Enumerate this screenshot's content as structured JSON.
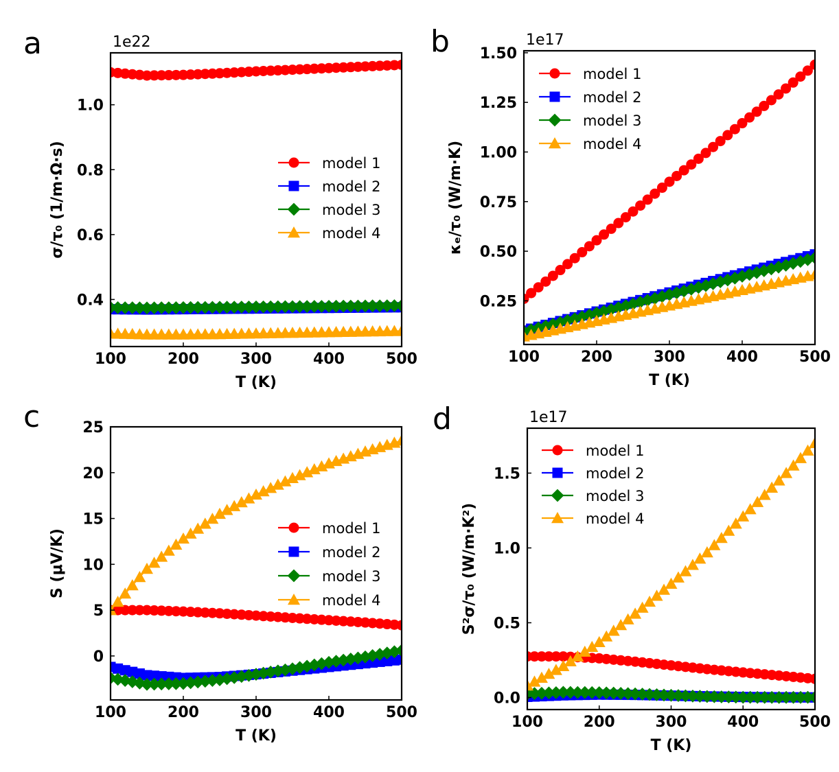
{
  "chart_data": [
    {
      "panel": "a",
      "type": "scatter",
      "offset_text": "1e22",
      "xlabel": "T (K)",
      "ylabel": "σ/τ₀ (1/m·Ω·s)",
      "xlim": [
        100,
        500
      ],
      "ylim": [
        0.255,
        1.16
      ],
      "xticks": [
        100,
        200,
        300,
        400,
        500
      ],
      "xtick_labels": [
        "100",
        "200",
        "300",
        "400",
        "500"
      ],
      "yticks": [
        0.4,
        0.6,
        0.8,
        1.0
      ],
      "ytick_labels": [
        "0.4",
        "0.6",
        "0.8",
        "1.0"
      ],
      "legend_position": "center-right",
      "legend": [
        "model 1",
        "model 2",
        "model 3",
        "model 4"
      ],
      "series": [
        {
          "name": "model 1",
          "color": "#ff0000",
          "marker": "circle",
          "x": [
            100,
            150,
            200,
            250,
            300,
            350,
            400,
            450,
            500
          ],
          "y": [
            1.1,
            1.09,
            1.092,
            1.097,
            1.103,
            1.108,
            1.113,
            1.118,
            1.123
          ]
        },
        {
          "name": "model 2",
          "color": "#0000ff",
          "marker": "square",
          "x": [
            100,
            150,
            200,
            250,
            300,
            350,
            400,
            450,
            500
          ],
          "y": [
            0.37,
            0.369,
            0.37,
            0.371,
            0.372,
            0.373,
            0.374,
            0.375,
            0.376
          ]
        },
        {
          "name": "model 3",
          "color": "#008000",
          "marker": "diamond",
          "x": [
            100,
            150,
            200,
            250,
            300,
            350,
            400,
            450,
            500
          ],
          "y": [
            0.375,
            0.374,
            0.375,
            0.376,
            0.377,
            0.378,
            0.379,
            0.38,
            0.381
          ]
        },
        {
          "name": "model 4",
          "color": "#ffa500",
          "marker": "triangle",
          "x": [
            100,
            150,
            200,
            250,
            300,
            350,
            400,
            450,
            500
          ],
          "y": [
            0.295,
            0.292,
            0.292,
            0.293,
            0.295,
            0.297,
            0.299,
            0.301,
            0.303
          ]
        }
      ]
    },
    {
      "panel": "b",
      "type": "scatter",
      "offset_text": "1e17",
      "xlabel": "T (K)",
      "ylabel": "κₑ/τ₀ (W/m·K)",
      "xlim": [
        100,
        500
      ],
      "ylim": [
        0.03,
        1.51
      ],
      "xticks": [
        100,
        200,
        300,
        400,
        500
      ],
      "xtick_labels": [
        "100",
        "200",
        "300",
        "400",
        "500"
      ],
      "yticks": [
        0.25,
        0.5,
        0.75,
        1.0,
        1.25,
        1.5
      ],
      "ytick_labels": [
        "0.25",
        "0.50",
        "0.75",
        "1.00",
        "1.25",
        "1.50"
      ],
      "legend_position": "upper-left",
      "legend": [
        "model 1",
        "model 2",
        "model 3",
        "model 4"
      ],
      "series": [
        {
          "name": "model 1",
          "color": "#ff0000",
          "marker": "circle",
          "x": [
            100,
            150,
            200,
            250,
            300,
            350,
            400,
            450,
            500
          ],
          "y": [
            0.26,
            0.405,
            0.555,
            0.7,
            0.85,
            0.995,
            1.145,
            1.29,
            1.44
          ]
        },
        {
          "name": "model 2",
          "color": "#0000ff",
          "marker": "square",
          "x": [
            100,
            150,
            200,
            250,
            300,
            350,
            400,
            450,
            500
          ],
          "y": [
            0.1,
            0.148,
            0.196,
            0.244,
            0.292,
            0.34,
            0.388,
            0.436,
            0.484
          ]
        },
        {
          "name": "model 3",
          "color": "#008000",
          "marker": "diamond",
          "x": [
            100,
            150,
            200,
            250,
            300,
            350,
            400,
            450,
            500
          ],
          "y": [
            0.095,
            0.141,
            0.188,
            0.234,
            0.281,
            0.327,
            0.374,
            0.42,
            0.467
          ]
        },
        {
          "name": "model 4",
          "color": "#ffa500",
          "marker": "triangle",
          "x": [
            100,
            150,
            200,
            250,
            300,
            350,
            400,
            450,
            500
          ],
          "y": [
            0.07,
            0.109,
            0.148,
            0.187,
            0.226,
            0.265,
            0.304,
            0.343,
            0.382
          ]
        }
      ]
    },
    {
      "panel": "c",
      "type": "scatter",
      "offset_text": "",
      "xlabel": "T (K)",
      "ylabel": "S (μV/K)",
      "xlim": [
        100,
        500
      ],
      "ylim": [
        -4.8,
        25
      ],
      "xticks": [
        100,
        200,
        300,
        400,
        500
      ],
      "xtick_labels": [
        "100",
        "200",
        "300",
        "400",
        "500"
      ],
      "yticks": [
        0,
        5,
        10,
        15,
        20,
        25
      ],
      "ytick_labels": [
        "0",
        "5",
        "10",
        "15",
        "20",
        "25"
      ],
      "legend_position": "center-right",
      "legend": [
        "model 1",
        "model 2",
        "model 3",
        "model 4"
      ],
      "series": [
        {
          "name": "model 1",
          "color": "#ff0000",
          "marker": "circle",
          "x": [
            100,
            150,
            200,
            250,
            300,
            350,
            400,
            450,
            500
          ],
          "y": [
            5.0,
            5.0,
            4.85,
            4.65,
            4.4,
            4.15,
            3.9,
            3.65,
            3.35
          ]
        },
        {
          "name": "model 2",
          "color": "#0000ff",
          "marker": "square",
          "x": [
            100,
            150,
            200,
            250,
            300,
            350,
            400,
            450,
            500
          ],
          "y": [
            -1.2,
            -2.1,
            -2.4,
            -2.3,
            -2.0,
            -1.6,
            -1.2,
            -0.8,
            -0.4
          ]
        },
        {
          "name": "model 3",
          "color": "#008000",
          "marker": "diamond",
          "x": [
            100,
            150,
            200,
            250,
            300,
            350,
            400,
            450,
            500
          ],
          "y": [
            -2.4,
            -3.1,
            -3.0,
            -2.6,
            -2.0,
            -1.4,
            -0.7,
            -0.1,
            0.6
          ]
        },
        {
          "name": "model 4",
          "color": "#ffa500",
          "marker": "triangle",
          "x": [
            100,
            150,
            200,
            250,
            300,
            350,
            400,
            450,
            500
          ],
          "y": [
            5.0,
            9.5,
            12.8,
            15.5,
            17.6,
            19.4,
            21.0,
            22.3,
            23.5
          ]
        }
      ]
    },
    {
      "panel": "d",
      "type": "scatter",
      "offset_text": "1e17",
      "xlabel": "T (K)",
      "ylabel": "S²σ/τ₀ (W/m·K²)",
      "xlim": [
        100,
        500
      ],
      "ylim": [
        -0.08,
        1.8
      ],
      "xticks": [
        100,
        200,
        300,
        400,
        500
      ],
      "xtick_labels": [
        "100",
        "200",
        "300",
        "400",
        "500"
      ],
      "yticks": [
        0.0,
        0.5,
        1.0,
        1.5
      ],
      "ytick_labels": [
        "0.0",
        "0.5",
        "1.0",
        "1.5"
      ],
      "legend_position": "upper-left",
      "legend": [
        "model 1",
        "model 2",
        "model 3",
        "model 4"
      ],
      "series": [
        {
          "name": "model 1",
          "color": "#ff0000",
          "marker": "circle",
          "x": [
            100,
            150,
            200,
            250,
            300,
            350,
            400,
            450,
            500
          ],
          "y": [
            0.275,
            0.275,
            0.262,
            0.24,
            0.215,
            0.19,
            0.168,
            0.147,
            0.125
          ]
        },
        {
          "name": "model 2",
          "color": "#0000ff",
          "marker": "square",
          "x": [
            100,
            150,
            200,
            250,
            300,
            350,
            400,
            450,
            500
          ],
          "y": [
            0.005,
            0.015,
            0.02,
            0.018,
            0.013,
            0.008,
            0.004,
            0.002,
            0.001
          ]
        },
        {
          "name": "model 3",
          "color": "#008000",
          "marker": "diamond",
          "x": [
            100,
            150,
            200,
            250,
            300,
            350,
            400,
            450,
            500
          ],
          "y": [
            0.025,
            0.035,
            0.033,
            0.025,
            0.015,
            0.007,
            0.002,
            0.001,
            0.002
          ]
        },
        {
          "name": "model 4",
          "color": "#ffa500",
          "marker": "triangle",
          "x": [
            100,
            150,
            200,
            250,
            300,
            350,
            400,
            450,
            500
          ],
          "y": [
            0.08,
            0.21,
            0.37,
            0.56,
            0.76,
            0.97,
            1.21,
            1.45,
            1.7
          ]
        }
      ]
    }
  ]
}
